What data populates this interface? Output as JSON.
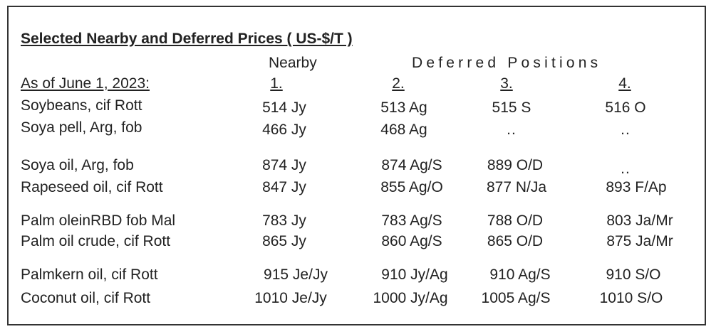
{
  "title": "Selected Nearby and Deferred Prices  ( US-$/T )",
  "header": {
    "nearby_label": "Nearby",
    "deferred_label": "Deferred Positions",
    "as_of": "As of June 1, 2023:",
    "col1": "1.",
    "col2": "2.",
    "col3": "3.",
    "col4": "4."
  },
  "rows": [
    {
      "name": "Soybeans, cif Rott",
      "c1": "514 Jy",
      "c2": "513 Ag",
      "c3": "515 S",
      "c4": "516 O"
    },
    {
      "name": "Soya pell, Arg, fob",
      "c1": "466 Jy",
      "c2": "468 Ag",
      "c3": "..",
      "c4": ".."
    },
    {
      "name": "Soya oil, Arg, fob",
      "c1": "874 Jy",
      "c2": "874 Ag/S",
      "c3": "889 O/D",
      "c4": ".."
    },
    {
      "name": "Rapeseed oil, cif Rott",
      "c1": "847 Jy",
      "c2": "855 Ag/O",
      "c3": "877 N/Ja",
      "c4": "893 F/Ap"
    },
    {
      "name": "Palm oleinRBD fob Mal",
      "c1": "783 Jy",
      "c2": "783 Ag/S",
      "c3": "788 O/D",
      "c4": "803 Ja/Mr"
    },
    {
      "name": "Palm oil crude, cif Rott",
      "c1": "865 Jy",
      "c2": "860 Ag/S",
      "c3": "865 O/D",
      "c4": "875 Ja/Mr"
    },
    {
      "name": "Palmkern oil, cif Rott",
      "c1": "915 Je/Jy",
      "c2": "910 Jy/Ag",
      "c3": "910 Ag/S",
      "c4": "910 S/O"
    },
    {
      "name": "Coconut oil, cif Rott",
      "c1": "1010 Je/Jy",
      "c2": "1000 Jy/Ag",
      "c3": "1005 Ag/S",
      "c4": "1010 S/O"
    }
  ]
}
